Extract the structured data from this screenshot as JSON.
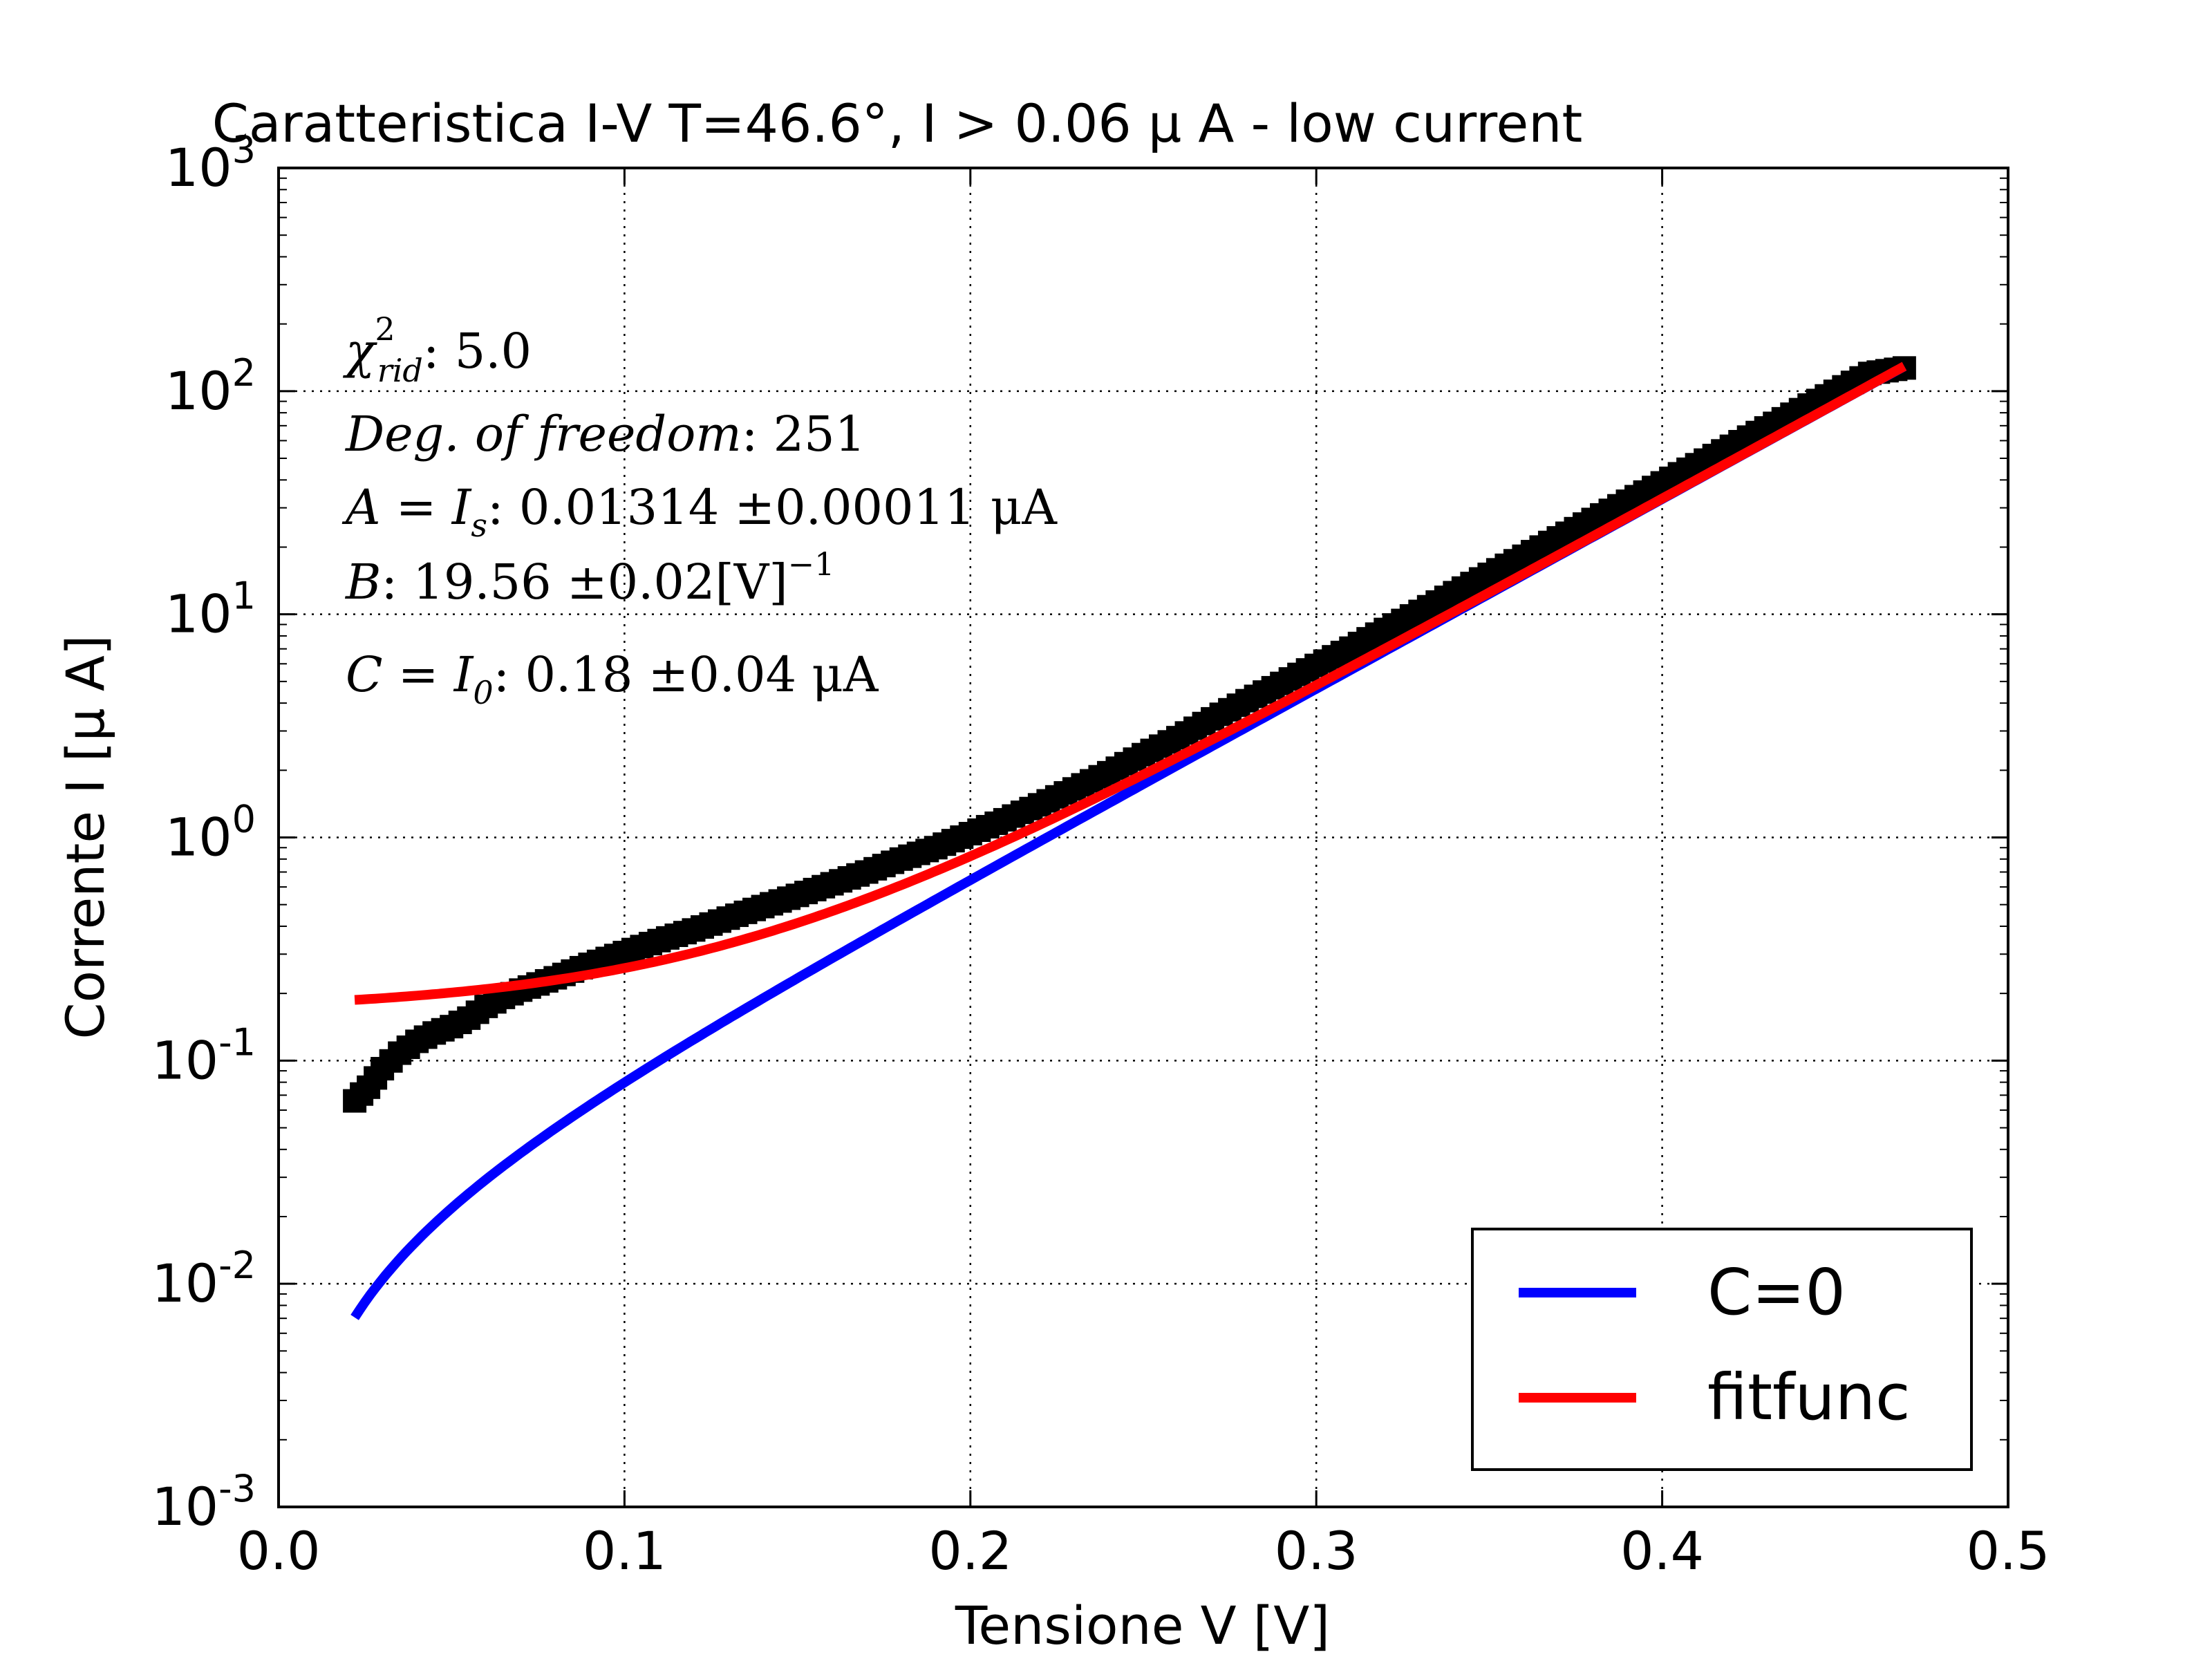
{
  "chart_data": {
    "type": "scatter",
    "title": "Caratteristica I-V T=46.6°, I > 0.06 μ A - low current",
    "xlabel": "Tensione V [V]",
    "ylabel": "Corrente I [μ A]",
    "xlim": [
      0.0,
      0.5
    ],
    "ylim": [
      0.001,
      1000
    ],
    "yscale": "log",
    "grid": true,
    "x_ticks": [
      "0.0",
      "0.1",
      "0.2",
      "0.3",
      "0.4",
      "0.5"
    ],
    "y_ticks": [
      {
        "base": "10",
        "exp": "-3"
      },
      {
        "base": "10",
        "exp": "-2"
      },
      {
        "base": "10",
        "exp": "-1"
      },
      {
        "base": "10",
        "exp": "0"
      },
      {
        "base": "10",
        "exp": "1"
      },
      {
        "base": "10",
        "exp": "2"
      },
      {
        "base": "10",
        "exp": "3"
      }
    ],
    "data_series": {
      "marker": "square",
      "color": "#000000",
      "points": [
        [
          0.022,
          0.066
        ],
        [
          0.026,
          0.076
        ],
        [
          0.03,
          0.092
        ],
        [
          0.035,
          0.108
        ],
        [
          0.04,
          0.122
        ],
        [
          0.045,
          0.133
        ],
        [
          0.05,
          0.142
        ],
        [
          0.055,
          0.155
        ],
        [
          0.06,
          0.175
        ],
        [
          0.065,
          0.192
        ],
        [
          0.07,
          0.207
        ],
        [
          0.08,
          0.235
        ],
        [
          0.09,
          0.27
        ],
        [
          0.1,
          0.305
        ],
        [
          0.11,
          0.345
        ],
        [
          0.12,
          0.385
        ],
        [
          0.13,
          0.435
        ],
        [
          0.14,
          0.49
        ],
        [
          0.15,
          0.55
        ],
        [
          0.16,
          0.62
        ],
        [
          0.17,
          0.7
        ],
        [
          0.18,
          0.8
        ],
        [
          0.19,
          0.9
        ],
        [
          0.2,
          1.04
        ],
        [
          0.21,
          1.2
        ],
        [
          0.22,
          1.4
        ],
        [
          0.23,
          1.65
        ],
        [
          0.24,
          1.95
        ],
        [
          0.25,
          2.35
        ],
        [
          0.26,
          2.8
        ],
        [
          0.27,
          3.4
        ],
        [
          0.28,
          4.1
        ],
        [
          0.29,
          4.9
        ],
        [
          0.3,
          5.9
        ],
        [
          0.31,
          7.05
        ],
        [
          0.32,
          8.55
        ],
        [
          0.33,
          10.3
        ],
        [
          0.34,
          12.5
        ],
        [
          0.35,
          15.1
        ],
        [
          0.36,
          18.2
        ],
        [
          0.37,
          22.0
        ],
        [
          0.38,
          26.6
        ],
        [
          0.39,
          32.1
        ],
        [
          0.4,
          38.8
        ],
        [
          0.41,
          46.8
        ],
        [
          0.42,
          56.6
        ],
        [
          0.43,
          68.4
        ],
        [
          0.44,
          82.6
        ],
        [
          0.45,
          99.8
        ],
        [
          0.46,
          120.0
        ],
        [
          0.47,
          127.0
        ]
      ]
    },
    "fit": {
      "A": 0.01314,
      "B": 19.56,
      "C": 0.18,
      "v_range": [
        0.022,
        0.47
      ]
    },
    "series": [
      {
        "name": "C=0",
        "color": "#0000ff",
        "formula": "A*(exp(B*V)-1)"
      },
      {
        "name": "fitfunc",
        "color": "#ff0000",
        "formula": "A*(exp(B*V)-1)+C"
      }
    ],
    "legend_position": "lower-right",
    "annotations": [
      {
        "lhs": "χ",
        "sup": "2",
        "sub": "rid",
        "sep": ": ",
        "value": "5.0"
      },
      {
        "lhs": "Deg. of freedom",
        "sep": ": ",
        "value": "251"
      },
      {
        "lhs": "A = I",
        "sub": "s",
        "sep": ": ",
        "value": "0.01314 ±0.00011   μA"
      },
      {
        "lhs": "B",
        "sep": ": ",
        "value": "19.56 ±0.02[V]",
        "value_sup": "−1"
      },
      {
        "lhs": "C = I",
        "sub": "0",
        "sep": ": ",
        "value": "0.18 ±0.04   μA"
      }
    ]
  }
}
